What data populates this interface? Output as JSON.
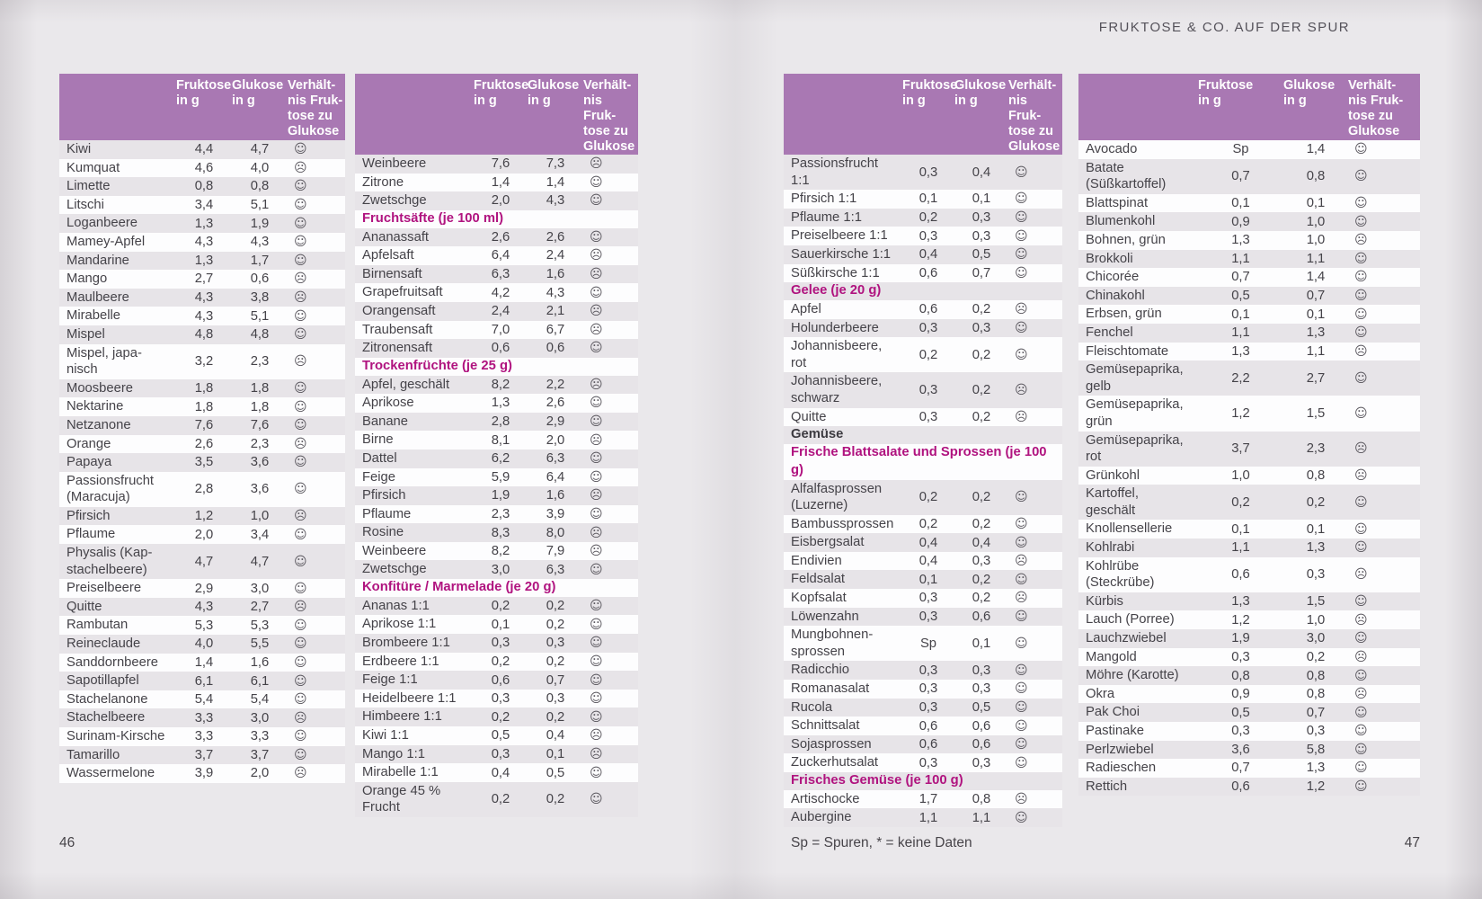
{
  "page_header": {
    "title": "FRUKTOSE & CO. AUF DER SPUR"
  },
  "columns": {
    "fructose": "Fruktose\nin g",
    "glucose": "Glukose\nin g",
    "ratio": "Verhält-\nnis Fruk-\ntose zu\nGlukose"
  },
  "icons": {
    "good": "☺",
    "bad": "☹"
  },
  "colors": {
    "header_purple": "#a978b3",
    "section_magenta": "#b0137f",
    "row_shade": "#e7e4e8",
    "page_background": "#eae8eb"
  },
  "footer": {
    "page_left": "46",
    "page_right": "47",
    "legend": "Sp = Spuren, * = keine Daten"
  },
  "tables": [
    {
      "rows": [
        [
          "Kiwi",
          "4,4",
          "4,7",
          "good"
        ],
        [
          "Kumquat",
          "4,6",
          "4,0",
          "bad"
        ],
        [
          "Limette",
          "0,8",
          "0,8",
          "good"
        ],
        [
          "Litschi",
          "3,4",
          "5,1",
          "good"
        ],
        [
          "Loganbeere",
          "1,3",
          "1,9",
          "good"
        ],
        [
          "Mamey-Apfel",
          "4,3",
          "4,3",
          "good"
        ],
        [
          "Mandarine",
          "1,3",
          "1,7",
          "good"
        ],
        [
          "Mango",
          "2,7",
          "0,6",
          "bad"
        ],
        [
          "Maulbeere",
          "4,3",
          "3,8",
          "bad"
        ],
        [
          "Mirabelle",
          "4,3",
          "5,1",
          "good"
        ],
        [
          "Mispel",
          "4,8",
          "4,8",
          "good"
        ],
        [
          "Mispel, japa-\nnisch",
          "3,2",
          "2,3",
          "bad"
        ],
        [
          "Moosbeere",
          "1,8",
          "1,8",
          "good"
        ],
        [
          "Nektarine",
          "1,8",
          "1,8",
          "good"
        ],
        [
          "Netzanone",
          "7,6",
          "7,6",
          "good"
        ],
        [
          "Orange",
          "2,6",
          "2,3",
          "bad"
        ],
        [
          "Papaya",
          "3,5",
          "3,6",
          "good"
        ],
        [
          "Passionsfrucht\n(Maracuja)",
          "2,8",
          "3,6",
          "good"
        ],
        [
          "Pfirsich",
          "1,2",
          "1,0",
          "bad"
        ],
        [
          "Pflaume",
          "2,0",
          "3,4",
          "good"
        ],
        [
          "Physalis (Kap-\nstachelbeere)",
          "4,7",
          "4,7",
          "good"
        ],
        [
          "Preiselbeere",
          "2,9",
          "3,0",
          "good"
        ],
        [
          "Quitte",
          "4,3",
          "2,7",
          "bad"
        ],
        [
          "Rambutan",
          "5,3",
          "5,3",
          "good"
        ],
        [
          "Reineclaude",
          "4,0",
          "5,5",
          "good"
        ],
        [
          "Sanddornbeere",
          "1,4",
          "1,6",
          "good"
        ],
        [
          "Sapotillapfel",
          "6,1",
          "6,1",
          "good"
        ],
        [
          "Stachelanone",
          "5,4",
          "5,4",
          "good"
        ],
        [
          "Stachelbeere",
          "3,3",
          "3,0",
          "bad"
        ],
        [
          "Surinam-Kirsche",
          "3,3",
          "3,3",
          "good"
        ],
        [
          "Tamarillo",
          "3,7",
          "3,7",
          "good"
        ],
        [
          "Wassermelone",
          "3,9",
          "2,0",
          "bad"
        ]
      ]
    },
    {
      "rows": [
        [
          "Weinbeere",
          "7,6",
          "7,3",
          "bad"
        ],
        [
          "Zitrone",
          "1,4",
          "1,4",
          "good"
        ],
        [
          "Zwetschge",
          "2,0",
          "4,3",
          "good"
        ],
        {
          "section": "Fruchtsäfte (je 100 ml)",
          "style": "magenta"
        },
        [
          "Ananassaft",
          "2,6",
          "2,6",
          "good"
        ],
        [
          "Apfelsaft",
          "6,4",
          "2,4",
          "bad"
        ],
        [
          "Birnensaft",
          "6,3",
          "1,6",
          "bad"
        ],
        [
          "Grapefruitsaft",
          "4,2",
          "4,3",
          "good"
        ],
        [
          "Orangensaft",
          "2,4",
          "2,1",
          "bad"
        ],
        [
          "Traubensaft",
          "7,0",
          "6,7",
          "bad"
        ],
        [
          "Zitronensaft",
          "0,6",
          "0,6",
          "good"
        ],
        {
          "section": "Trockenfrüchte (je 25 g)",
          "style": "magenta"
        },
        [
          "Apfel, geschält",
          "8,2",
          "2,2",
          "bad"
        ],
        [
          "Aprikose",
          "1,3",
          "2,6",
          "good"
        ],
        [
          "Banane",
          "2,8",
          "2,9",
          "good"
        ],
        [
          "Birne",
          "8,1",
          "2,0",
          "bad"
        ],
        [
          "Dattel",
          "6,2",
          "6,3",
          "good"
        ],
        [
          "Feige",
          "5,9",
          "6,4",
          "good"
        ],
        [
          "Pfirsich",
          "1,9",
          "1,6",
          "bad"
        ],
        [
          "Pflaume",
          "2,3",
          "3,9",
          "good"
        ],
        [
          "Rosine",
          "8,3",
          "8,0",
          "bad"
        ],
        [
          "Weinbeere",
          "8,2",
          "7,9",
          "bad"
        ],
        [
          "Zwetschge",
          "3,0",
          "6,3",
          "good"
        ],
        {
          "section": "Konfitüre / Marmelade (je 20 g)",
          "style": "magenta"
        },
        [
          "Ananas 1:1",
          "0,2",
          "0,2",
          "good"
        ],
        [
          "Aprikose 1:1",
          "0,1",
          "0,2",
          "good"
        ],
        [
          "Brombeere 1:1",
          "0,3",
          "0,3",
          "good"
        ],
        [
          "Erdbeere 1:1",
          "0,2",
          "0,2",
          "good"
        ],
        [
          "Feige 1:1",
          "0,6",
          "0,7",
          "good"
        ],
        [
          "Heidelbeere 1:1",
          "0,3",
          "0,3",
          "good"
        ],
        [
          "Himbeere 1:1",
          "0,2",
          "0,2",
          "good"
        ],
        [
          "Kiwi 1:1",
          "0,5",
          "0,4",
          "bad"
        ],
        [
          "Mango 1:1",
          "0,3",
          "0,1",
          "bad"
        ],
        [
          "Mirabelle 1:1",
          "0,4",
          "0,5",
          "good"
        ],
        [
          "Orange 45 %\nFrucht",
          "0,2",
          "0,2",
          "good"
        ]
      ]
    },
    {
      "rows": [
        [
          "Passionsfrucht\n1:1",
          "0,3",
          "0,4",
          "good"
        ],
        [
          "Pfirsich 1:1",
          "0,1",
          "0,1",
          "good"
        ],
        [
          "Pflaume 1:1",
          "0,2",
          "0,3",
          "good"
        ],
        [
          "Preiselbeere 1:1",
          "0,3",
          "0,3",
          "good"
        ],
        [
          "Sauerkirsche 1:1",
          "0,4",
          "0,5",
          "good"
        ],
        [
          "Süßkirsche 1:1",
          "0,6",
          "0,7",
          "good"
        ],
        {
          "section": "Gelee (je 20 g)",
          "style": "magenta"
        },
        [
          "Apfel",
          "0,6",
          "0,2",
          "bad"
        ],
        [
          "Holunderbeere",
          "0,3",
          "0,3",
          "good"
        ],
        [
          "Johannisbeere,\nrot",
          "0,2",
          "0,2",
          "good"
        ],
        [
          "Johannisbeere,\nschwarz",
          "0,3",
          "0,2",
          "bad"
        ],
        [
          "Quitte",
          "0,3",
          "0,2",
          "bad"
        ],
        {
          "section": "Gemüse",
          "style": "dark"
        },
        {
          "section": "Frische Blattsalate und Sprossen (je 100 g)",
          "style": "magenta"
        },
        [
          "Alfalfasprossen\n(Luzerne)",
          "0,2",
          "0,2",
          "good"
        ],
        [
          "Bambussprossen",
          "0,2",
          "0,2",
          "good"
        ],
        [
          "Eisbergsalat",
          "0,4",
          "0,4",
          "good"
        ],
        [
          "Endivien",
          "0,4",
          "0,3",
          "bad"
        ],
        [
          "Feldsalat",
          "0,1",
          "0,2",
          "good"
        ],
        [
          "Kopfsalat",
          "0,3",
          "0,2",
          "bad"
        ],
        [
          "Löwenzahn",
          "0,3",
          "0,6",
          "good"
        ],
        [
          "Mungbohnen-\nsprossen",
          "Sp",
          "0,1",
          "good"
        ],
        [
          "Radicchio",
          "0,3",
          "0,3",
          "good"
        ],
        [
          "Romanasalat",
          "0,3",
          "0,3",
          "good"
        ],
        [
          "Rucola",
          "0,3",
          "0,5",
          "good"
        ],
        [
          "Schnittsalat",
          "0,6",
          "0,6",
          "good"
        ],
        [
          "Sojasprossen",
          "0,6",
          "0,6",
          "good"
        ],
        [
          "Zuckerhutsalat",
          "0,3",
          "0,3",
          "good"
        ],
        {
          "section": "Frisches Gemüse (je 100 g)",
          "style": "magenta"
        },
        [
          "Artischocke",
          "1,7",
          "0,8",
          "bad"
        ],
        [
          "Aubergine",
          "1,1",
          "1,1",
          "good"
        ]
      ]
    },
    {
      "rows": [
        [
          "Avocado",
          "Sp",
          "1,4",
          "good"
        ],
        [
          "Batate\n(Süßkartoffel)",
          "0,7",
          "0,8",
          "good"
        ],
        [
          "Blattspinat",
          "0,1",
          "0,1",
          "good"
        ],
        [
          "Blumenkohl",
          "0,9",
          "1,0",
          "good"
        ],
        [
          "Bohnen, grün",
          "1,3",
          "1,0",
          "bad"
        ],
        [
          "Brokkoli",
          "1,1",
          "1,1",
          "good"
        ],
        [
          "Chicorée",
          "0,7",
          "1,4",
          "good"
        ],
        [
          "Chinakohl",
          "0,5",
          "0,7",
          "good"
        ],
        [
          "Erbsen, grün",
          "0,1",
          "0,1",
          "good"
        ],
        [
          "Fenchel",
          "1,1",
          "1,3",
          "good"
        ],
        [
          "Fleischtomate",
          "1,3",
          "1,1",
          "bad"
        ],
        [
          "Gemüsepaprika,\ngelb",
          "2,2",
          "2,7",
          "good"
        ],
        [
          "Gemüsepaprika,\ngrün",
          "1,2",
          "1,5",
          "good"
        ],
        [
          "Gemüsepaprika,\nrot",
          "3,7",
          "2,3",
          "bad"
        ],
        [
          "Grünkohl",
          "1,0",
          "0,8",
          "bad"
        ],
        [
          "Kartoffel,\ngeschält",
          "0,2",
          "0,2",
          "good"
        ],
        [
          "Knollensellerie",
          "0,1",
          "0,1",
          "good"
        ],
        [
          "Kohlrabi",
          "1,1",
          "1,3",
          "good"
        ],
        [
          "Kohlrübe\n(Steckrübe)",
          "0,6",
          "0,3",
          "bad"
        ],
        [
          "Kürbis",
          "1,3",
          "1,5",
          "good"
        ],
        [
          "Lauch (Porree)",
          "1,2",
          "1,0",
          "bad"
        ],
        [
          "Lauchzwiebel",
          "1,9",
          "3,0",
          "good"
        ],
        [
          "Mangold",
          "0,3",
          "0,2",
          "bad"
        ],
        [
          "Möhre (Karotte)",
          "0,8",
          "0,8",
          "good"
        ],
        [
          "Okra",
          "0,9",
          "0,8",
          "bad"
        ],
        [
          "Pak Choi",
          "0,5",
          "0,7",
          "good"
        ],
        [
          "Pastinake",
          "0,3",
          "0,3",
          "good"
        ],
        [
          "Perlzwiebel",
          "3,6",
          "5,8",
          "good"
        ],
        [
          "Radieschen",
          "0,7",
          "1,3",
          "good"
        ],
        [
          "Rettich",
          "0,6",
          "1,2",
          "good"
        ]
      ]
    }
  ]
}
